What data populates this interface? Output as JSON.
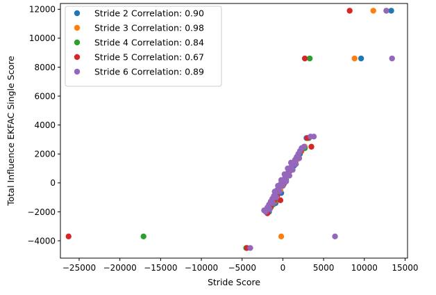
{
  "chart_data": {
    "type": "scatter",
    "title": "",
    "xlabel": "Stride Score",
    "ylabel": "Total Influence EKFAC Single Score",
    "xlim": [
      -27300,
      15300
    ],
    "ylim": [
      -5200,
      12400
    ],
    "xticks": [
      -25000,
      -20000,
      -15000,
      -10000,
      -5000,
      0,
      5000,
      10000,
      15000
    ],
    "yticks": [
      -4000,
      -2000,
      0,
      2000,
      4000,
      6000,
      8000,
      10000,
      12000
    ],
    "legend_position": "top-left",
    "series": [
      {
        "name": "Stride 2 Correlation: 0.90",
        "color": "#1f77b4",
        "points": [
          [
            13300,
            11900
          ],
          [
            9600,
            8600
          ],
          [
            -1500,
            -1700
          ],
          [
            -900,
            -1400
          ],
          [
            -200,
            -700
          ],
          [
            400,
            200
          ],
          [
            1000,
            900
          ],
          [
            1700,
            1600
          ],
          [
            2500,
            2400
          ],
          [
            2900,
            3100
          ],
          [
            -1700,
            -2000
          ],
          [
            -300,
            -300
          ],
          [
            500,
            600
          ],
          [
            1400,
            1200
          ],
          [
            2100,
            2000
          ]
        ]
      },
      {
        "name": "Stride 3 Correlation: 0.98",
        "color": "#ff7f0e",
        "points": [
          [
            11100,
            11900
          ],
          [
            8800,
            8600
          ],
          [
            -200,
            -3700
          ],
          [
            -1800,
            -1900
          ],
          [
            -1000,
            -1300
          ],
          [
            -300,
            -500
          ],
          [
            300,
            300
          ],
          [
            900,
            1000
          ],
          [
            1600,
            1500
          ],
          [
            2300,
            2200
          ],
          [
            3100,
            3100
          ],
          [
            2700,
            2500
          ],
          [
            -1400,
            -1600
          ],
          [
            100,
            0
          ]
        ]
      },
      {
        "name": "Stride 4 Correlation: 0.84",
        "color": "#2ca02c",
        "points": [
          [
            12700,
            11900
          ],
          [
            3300,
            8600
          ],
          [
            -17100,
            -3700
          ],
          [
            -4500,
            -4500
          ],
          [
            -1600,
            -1800
          ],
          [
            -800,
            -1100
          ],
          [
            0,
            -200
          ],
          [
            700,
            700
          ],
          [
            1400,
            1400
          ],
          [
            2100,
            2100
          ],
          [
            2700,
            2400
          ],
          [
            3200,
            3100
          ],
          [
            -1200,
            -1500
          ],
          [
            300,
            400
          ]
        ]
      },
      {
        "name": "Stride 5 Correlation: 0.67",
        "color": "#d62728",
        "points": [
          [
            8200,
            11900
          ],
          [
            2700,
            8600
          ],
          [
            -26300,
            -3700
          ],
          [
            -4400,
            -4500
          ],
          [
            -1900,
            -2100
          ],
          [
            -1500,
            -1700
          ],
          [
            -300,
            -1200
          ],
          [
            -700,
            -900
          ],
          [
            100,
            -100
          ],
          [
            800,
            800
          ],
          [
            1500,
            1400
          ],
          [
            2200,
            2200
          ],
          [
            3000,
            3100
          ],
          [
            3500,
            2500
          ],
          [
            -1100,
            -1300
          ],
          [
            500,
            500
          ]
        ]
      },
      {
        "name": "Stride 6 Correlation: 0.89",
        "color": "#9467bd",
        "points": [
          [
            12700,
            11900
          ],
          [
            13400,
            8600
          ],
          [
            6400,
            -3700
          ],
          [
            -4000,
            -4500
          ],
          [
            -2300,
            -1900
          ],
          [
            -2100,
            -2000
          ],
          [
            -1900,
            -1700
          ],
          [
            -1700,
            -1500
          ],
          [
            -1500,
            -1300
          ],
          [
            -1300,
            -1100
          ],
          [
            -1100,
            -900
          ],
          [
            -900,
            -700
          ],
          [
            -700,
            -500
          ],
          [
            -500,
            -300
          ],
          [
            -300,
            -100
          ],
          [
            -100,
            0
          ],
          [
            100,
            200
          ],
          [
            300,
            400
          ],
          [
            500,
            600
          ],
          [
            700,
            800
          ],
          [
            900,
            1000
          ],
          [
            1100,
            1200
          ],
          [
            1300,
            1400
          ],
          [
            1500,
            1600
          ],
          [
            1700,
            1800
          ],
          [
            1900,
            2000
          ],
          [
            2100,
            2200
          ],
          [
            2300,
            2400
          ],
          [
            2600,
            2500
          ],
          [
            3400,
            3200
          ],
          [
            3800,
            3200
          ],
          [
            -1600,
            -1800
          ],
          [
            -1200,
            -1400
          ],
          [
            -800,
            -1000
          ],
          [
            -400,
            -600
          ],
          [
            0,
            -200
          ],
          [
            400,
            100
          ],
          [
            800,
            500
          ],
          [
            1200,
            900
          ],
          [
            1600,
            1300
          ],
          [
            2000,
            1700
          ],
          [
            -1000,
            -600
          ],
          [
            -600,
            -200
          ],
          [
            -200,
            200
          ],
          [
            200,
            600
          ],
          [
            600,
            1000
          ],
          [
            1000,
            1400
          ]
        ]
      }
    ]
  }
}
